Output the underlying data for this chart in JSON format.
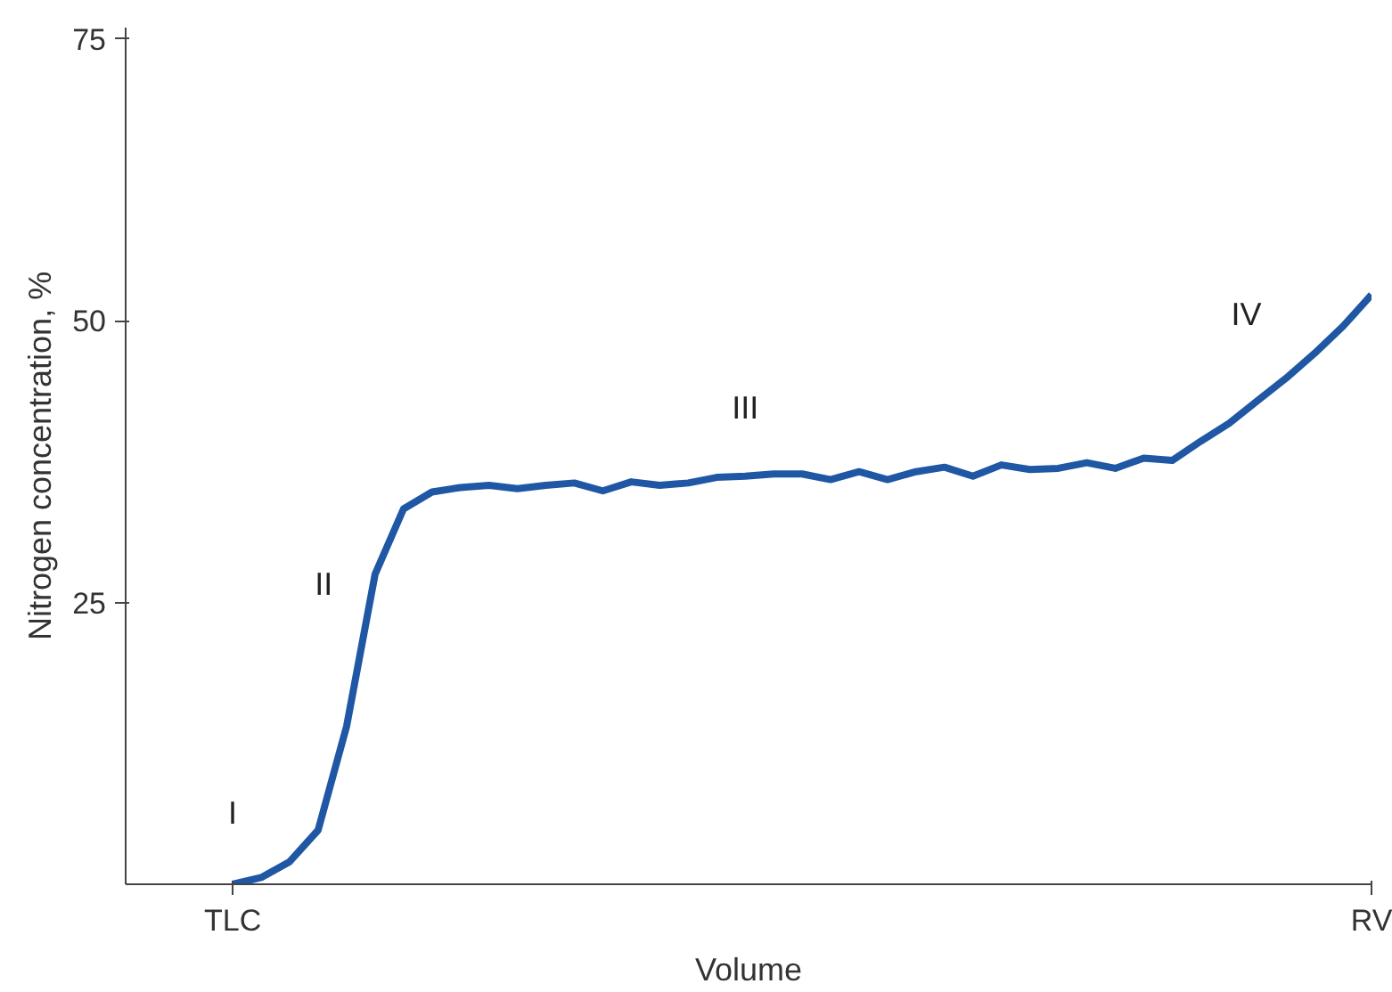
{
  "chart_data": {
    "type": "line",
    "xlabel": "Volume",
    "ylabel": "Nitrogen concentration, %",
    "categories": [
      "TLC",
      null,
      null,
      null,
      null,
      null,
      null,
      null,
      null,
      null,
      null,
      null,
      null,
      null,
      null,
      null,
      null,
      null,
      null,
      null,
      null,
      null,
      null,
      null,
      null,
      null,
      null,
      null,
      null,
      null,
      null,
      null,
      null,
      null,
      null,
      null,
      null,
      null,
      null,
      null,
      "RV"
    ],
    "series": [
      {
        "color": "#1f57a4",
        "values": [
          0,
          0.6,
          2,
          4.8,
          14,
          27.5,
          33.3,
          34.8,
          35.2,
          35.4,
          35.1,
          35.4,
          35.6,
          34.9,
          35.7,
          35.4,
          35.6,
          36.1,
          36.2,
          36.4,
          36.4,
          35.9,
          36.6,
          35.9,
          36.6,
          37.0,
          36.2,
          37.2,
          36.8,
          36.9,
          37.4,
          36.9,
          37.8,
          37.6,
          39.3,
          40.9,
          42.9,
          44.9,
          47.1,
          49.5,
          52.3
        ]
      }
    ],
    "ylim": [
      0,
      76
    ],
    "yticks": [
      25,
      50,
      75
    ],
    "annotations": [
      "I",
      "II",
      "III",
      "IV"
    ],
    "grid": false,
    "marker": "none",
    "line_style": "solid"
  }
}
